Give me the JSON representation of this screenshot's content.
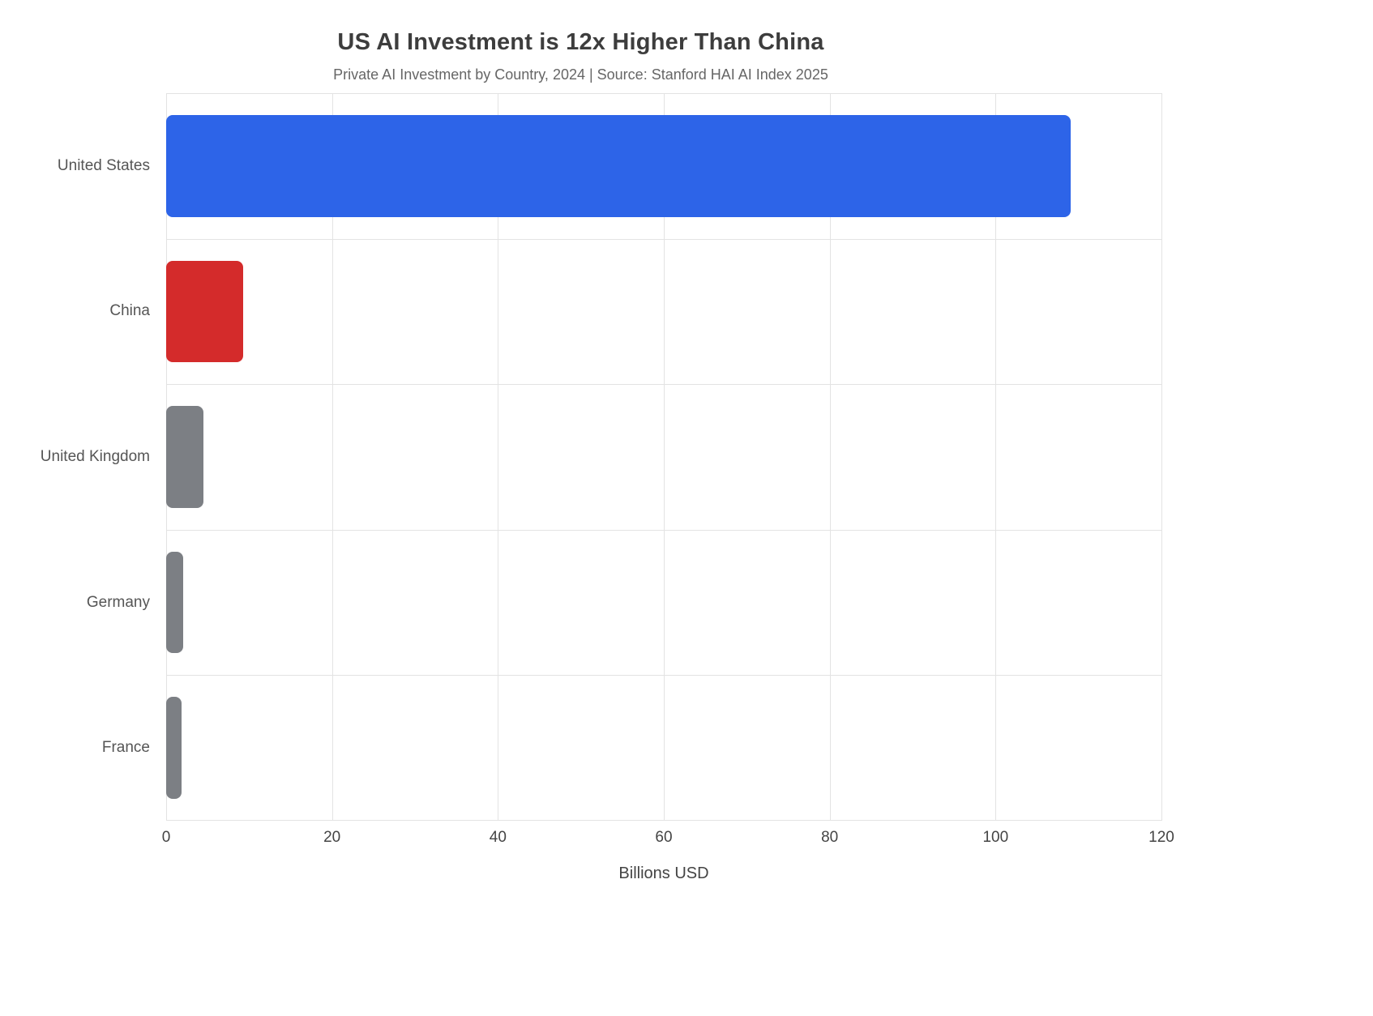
{
  "chart_data": {
    "type": "bar",
    "orientation": "horizontal",
    "title": "US AI Investment is 12x Higher Than China",
    "subtitle": "Private AI Investment by Country, 2024 | Source: Stanford HAI AI Index 2025",
    "categories": [
      "United States",
      "China",
      "United Kingdom",
      "Germany",
      "France"
    ],
    "values": [
      109.1,
      9.3,
      4.5,
      2.1,
      1.9
    ],
    "bar_colors": [
      "#2d64e8",
      "#d42b2b",
      "#7c7f84",
      "#7c7f84",
      "#7c7f84"
    ],
    "xlabel": "Billions USD",
    "xlim": [
      0,
      120
    ],
    "xticks": [
      0,
      20,
      40,
      60,
      80,
      100,
      120
    ],
    "grid": true,
    "legend": "none",
    "background": "#ffffff",
    "gridline_color": "#e3e3e3"
  }
}
